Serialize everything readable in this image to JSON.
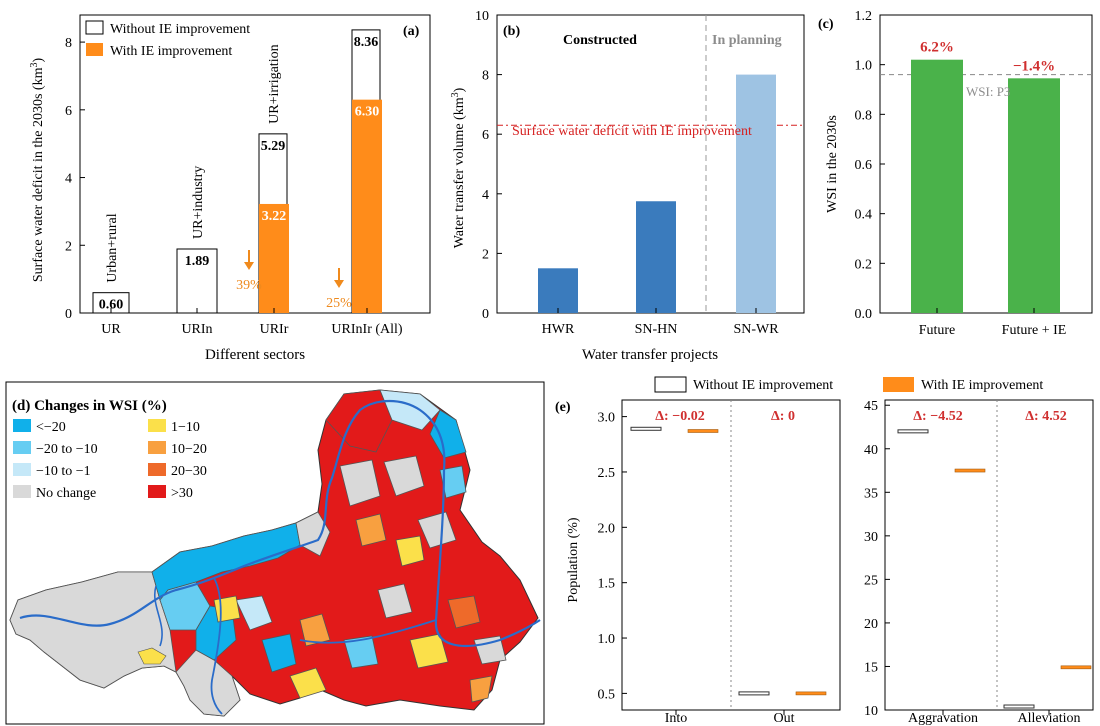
{
  "panel_a": {
    "tag": "(a)",
    "ylabel": "Surface water deficit in the 2030s (km",
    "ylabel_sup": "3",
    "ylabel_end": ")",
    "xlabel": "Different sectors",
    "legend": [
      "Without IE improvement",
      "With IE improvement"
    ],
    "reduction_labels": [
      "39%",
      "25%"
    ],
    "colors": {
      "without": "#ffffff",
      "with": "#ff8c1a",
      "arrow": "#f08a1c",
      "with_text": "#ee8a1e"
    }
  },
  "panel_b": {
    "tag": "(b)",
    "ylabel": "Water transfer volume (km",
    "ylabel_sup": "3",
    "ylabel_end": ")",
    "xlabel": "Water transfer projects",
    "section_constructed": "Constructed",
    "section_planning": "In planning",
    "deficit_label": "Surface water deficit with IE improvement",
    "colors": {
      "constructed": "#3a7bbd",
      "planning": "#9ec3e3",
      "deficit": "#d62020"
    }
  },
  "panel_c": {
    "tag": "(c)",
    "ylabel": "WSI in the 2030s",
    "threshold_label": "WSI: P3",
    "change_labels": [
      "6.2%",
      "−1.4%"
    ],
    "colors": {
      "bar": "#4ab24a",
      "label": "#d03030"
    }
  },
  "panel_d": {
    "tag": "(d) Changes in WSI (%)",
    "legend": [
      {
        "label": "<−20",
        "color": "#10b0ea"
      },
      {
        "label": "1−10",
        "color": "#fbe04a"
      },
      {
        "label": "−20 to −10",
        "color": "#66cdf2"
      },
      {
        "label": "10−20",
        "color": "#f8a040"
      },
      {
        "label": "−10  to −1",
        "color": "#c5e8f8"
      },
      {
        "label": "20−30",
        "color": "#ee6a2a"
      },
      {
        "label": "No change",
        "color": "#d9d9d9"
      },
      {
        "label": ">30",
        "color": "#e21a1a"
      }
    ]
  },
  "panel_e": {
    "tag": "(e)",
    "ylabel": "Population (%)",
    "legend": [
      "Without IE improvement",
      "With IE improvement"
    ],
    "delta_left": [
      "Δ: −0.02",
      "Δ: 0"
    ],
    "delta_right": [
      "Δ: −4.52",
      "Δ: 4.52"
    ]
  },
  "chart_data": [
    {
      "type": "bar",
      "title": "",
      "xlabel": "Different sectors",
      "ylabel": "Surface water deficit in the 2030s (km3)",
      "categories": [
        "UR",
        "URIn",
        "URIr",
        "URInIr (All)"
      ],
      "category_labels": [
        "Urban+rural",
        "UR+industry",
        "UR+irrigation",
        ""
      ],
      "series": [
        {
          "name": "Without IE improvement",
          "values": [
            0.6,
            1.89,
            5.29,
            8.36
          ]
        },
        {
          "name": "With IE improvement",
          "values": [
            null,
            null,
            3.22,
            6.3
          ]
        }
      ],
      "value_labels": {
        "without": [
          "0.60",
          "1.89",
          "5.29",
          "8.36"
        ],
        "with": [
          "",
          "",
          "3.22",
          "6.30"
        ]
      },
      "ylim": [
        0,
        8.8
      ],
      "yticks": [
        0,
        2,
        4,
        6,
        8
      ]
    },
    {
      "type": "bar",
      "title": "",
      "xlabel": "Water transfer projects",
      "ylabel": "Water transfer volume (km3)",
      "categories": [
        "HWR",
        "SN-HN",
        "SN-WR"
      ],
      "values": [
        1.5,
        3.75,
        8.0
      ],
      "status": [
        "Constructed",
        "Constructed",
        "In planning"
      ],
      "reference_line": {
        "label": "Surface water deficit with IE improvement",
        "value": 6.3
      },
      "ylim": [
        0,
        10
      ],
      "yticks": [
        0,
        2,
        4,
        6,
        8,
        10
      ]
    },
    {
      "type": "bar",
      "title": "",
      "ylabel": "WSI in the 2030s",
      "categories": [
        "Future",
        "Future + IE"
      ],
      "values": [
        1.02,
        0.945
      ],
      "value_labels": [
        "6.2%",
        "−1.4%"
      ],
      "reference_line": {
        "label": "WSI: P3",
        "value": 0.96
      },
      "ylim": [
        0,
        1.2
      ],
      "yticks": [
        0.0,
        0.2,
        0.4,
        0.6,
        0.8,
        1.0,
        1.2
      ],
      "ytick_labels": [
        "0.0",
        "0.2",
        "0.4",
        "0.6",
        "0.8",
        "1.0",
        "1.2"
      ]
    },
    {
      "type": "box",
      "title": "",
      "ylabel": "Population (%)",
      "categories": [
        "Into",
        "Out"
      ],
      "series": [
        {
          "name": "Without IE improvement",
          "values": [
            2.89,
            0.5
          ]
        },
        {
          "name": "With IE improvement",
          "values": [
            2.87,
            0.5
          ]
        }
      ],
      "ylim": [
        0.35,
        3.15
      ],
      "yticks": [
        0.5,
        1.0,
        1.5,
        2.0,
        2.5,
        3.0
      ],
      "ytick_labels": [
        "0.5",
        "1.0",
        "1.5",
        "2.0",
        "2.5",
        "3.0"
      ]
    },
    {
      "type": "box",
      "title": "",
      "categories": [
        "Aggravation",
        "Alleviation"
      ],
      "series": [
        {
          "name": "Without IE improvement",
          "values": [
            42.0,
            10.4
          ]
        },
        {
          "name": "With IE improvement",
          "values": [
            37.5,
            14.9
          ]
        }
      ],
      "ylim": [
        10,
        45.6
      ],
      "yticks": [
        10,
        15,
        20,
        25,
        30,
        35,
        40,
        45
      ]
    }
  ]
}
